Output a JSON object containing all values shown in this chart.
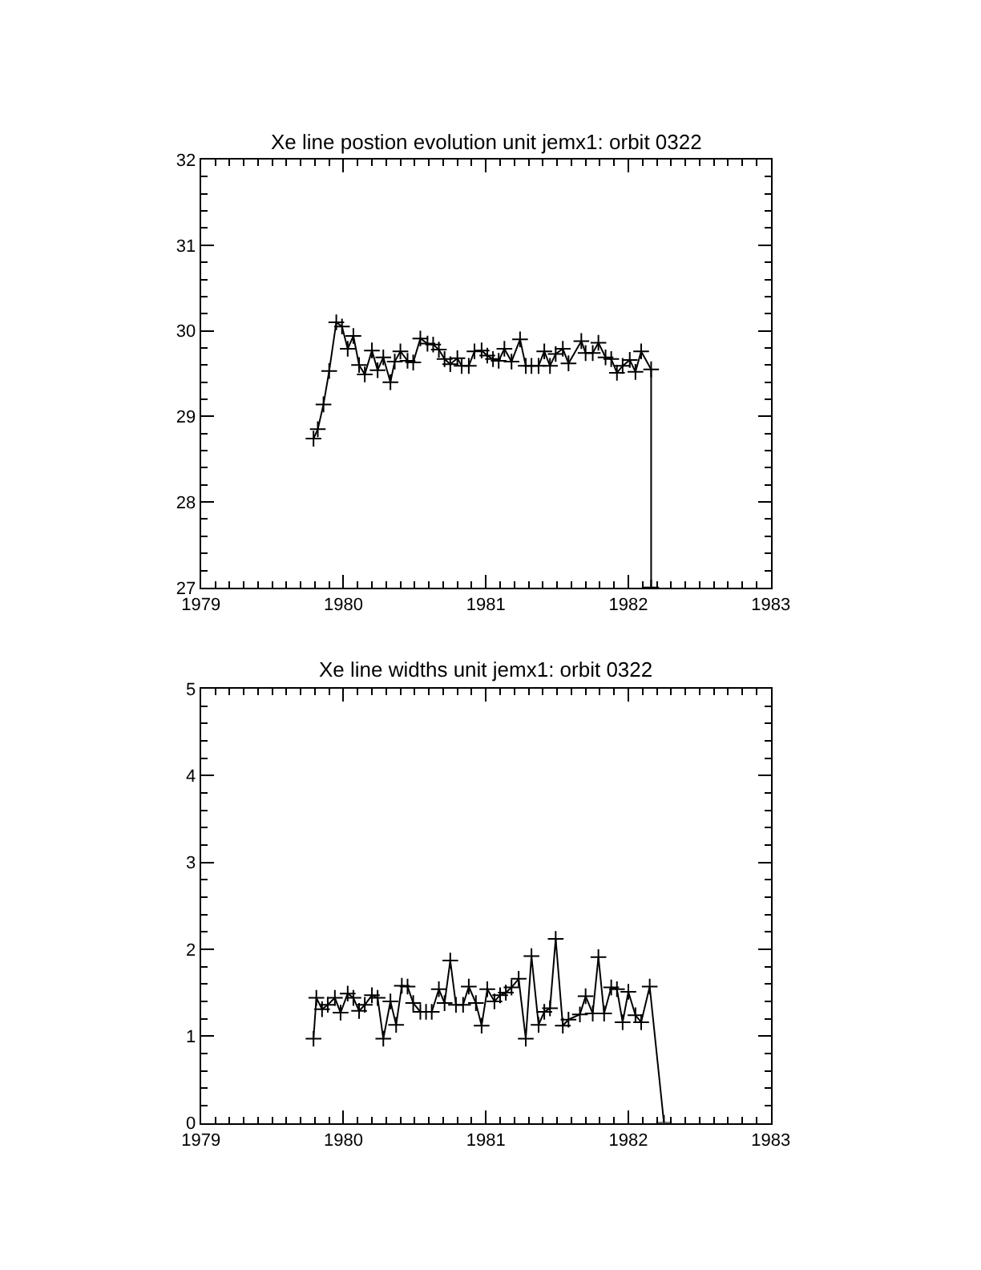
{
  "chart_data": [
    {
      "type": "line",
      "title": "Xe line postion evolution unit jemx1: orbit 0322",
      "marker": "cross",
      "line_style": "solid",
      "xlim": [
        1979,
        1983
      ],
      "xticks": [
        1979,
        1980,
        1981,
        1982,
        1983
      ],
      "ylim": [
        27,
        32
      ],
      "yticks": [
        27,
        28,
        29,
        30,
        31,
        32
      ],
      "x": [
        1979.79,
        1979.82,
        1979.86,
        1979.9,
        1979.95,
        1979.99,
        1980.03,
        1980.07,
        1980.11,
        1980.15,
        1980.2,
        1980.24,
        1980.28,
        1980.33,
        1980.36,
        1980.4,
        1980.45,
        1980.49,
        1980.54,
        1980.59,
        1980.63,
        1980.67,
        1980.71,
        1980.75,
        1980.8,
        1980.83,
        1980.88,
        1980.92,
        1980.97,
        1981.01,
        1981.05,
        1981.09,
        1981.13,
        1981.18,
        1981.24,
        1981.28,
        1981.32,
        1981.37,
        1981.41,
        1981.45,
        1981.49,
        1981.54,
        1981.58,
        1981.67,
        1981.7,
        1981.75,
        1981.79,
        1981.84,
        1981.88,
        1981.92,
        1981.96,
        1982.01,
        1982.05,
        1982.09,
        1982.16,
        1982.16
      ],
      "series": [
        {
          "color": "#000000",
          "values": [
            28.74,
            28.85,
            29.14,
            29.53,
            30.1,
            30.05,
            29.79,
            29.94,
            29.6,
            29.49,
            29.77,
            29.54,
            29.69,
            29.4,
            29.64,
            29.76,
            29.65,
            29.63,
            29.91,
            29.85,
            29.84,
            29.78,
            29.67,
            29.61,
            29.68,
            29.59,
            29.59,
            29.76,
            29.77,
            29.71,
            29.67,
            29.65,
            29.79,
            29.64,
            29.9,
            29.59,
            29.59,
            29.59,
            29.76,
            29.59,
            29.73,
            29.79,
            29.62,
            29.88,
            29.74,
            29.74,
            29.86,
            29.69,
            29.67,
            29.51,
            29.59,
            29.66,
            29.52,
            29.76,
            29.55,
            27
          ]
        }
      ]
    },
    {
      "type": "line",
      "title": "Xe line widths unit jemx1: orbit 0322",
      "marker": "cross",
      "line_style": "solid",
      "xlim": [
        1979,
        1983
      ],
      "xticks": [
        1979,
        1980,
        1981,
        1982,
        1983
      ],
      "ylim": [
        0,
        5
      ],
      "yticks": [
        0,
        1,
        2,
        3,
        4,
        5
      ],
      "x": [
        1979.79,
        1979.81,
        1979.85,
        1979.89,
        1979.94,
        1979.98,
        1980.03,
        1980.07,
        1980.11,
        1980.15,
        1980.2,
        1980.24,
        1980.28,
        1980.33,
        1980.37,
        1980.41,
        1980.45,
        1980.49,
        1980.54,
        1980.58,
        1980.62,
        1980.67,
        1980.71,
        1980.75,
        1980.79,
        1980.84,
        1980.88,
        1980.93,
        1980.97,
        1981.01,
        1981.06,
        1981.1,
        1981.14,
        1981.18,
        1981.23,
        1981.28,
        1981.32,
        1981.37,
        1981.41,
        1981.45,
        1981.49,
        1981.54,
        1981.58,
        1981.66,
        1981.7,
        1981.75,
        1981.79,
        1981.83,
        1981.88,
        1981.92,
        1981.96,
        1982.0,
        1982.05,
        1982.09,
        1982.15,
        1982.25
      ],
      "series": [
        {
          "color": "#000000",
          "values": [
            0.97,
            1.44,
            1.31,
            1.36,
            1.44,
            1.27,
            1.49,
            1.44,
            1.29,
            1.36,
            1.47,
            1.44,
            0.97,
            1.4,
            1.13,
            1.58,
            1.57,
            1.38,
            1.28,
            1.28,
            1.28,
            1.54,
            1.38,
            1.87,
            1.36,
            1.36,
            1.57,
            1.38,
            1.12,
            1.54,
            1.4,
            1.47,
            1.5,
            1.56,
            1.66,
            0.97,
            1.92,
            1.13,
            1.28,
            1.32,
            2.12,
            1.12,
            1.19,
            1.25,
            1.46,
            1.26,
            1.91,
            1.26,
            1.56,
            1.54,
            1.16,
            1.51,
            1.24,
            1.16,
            1.57,
            0
          ]
        }
      ]
    }
  ]
}
